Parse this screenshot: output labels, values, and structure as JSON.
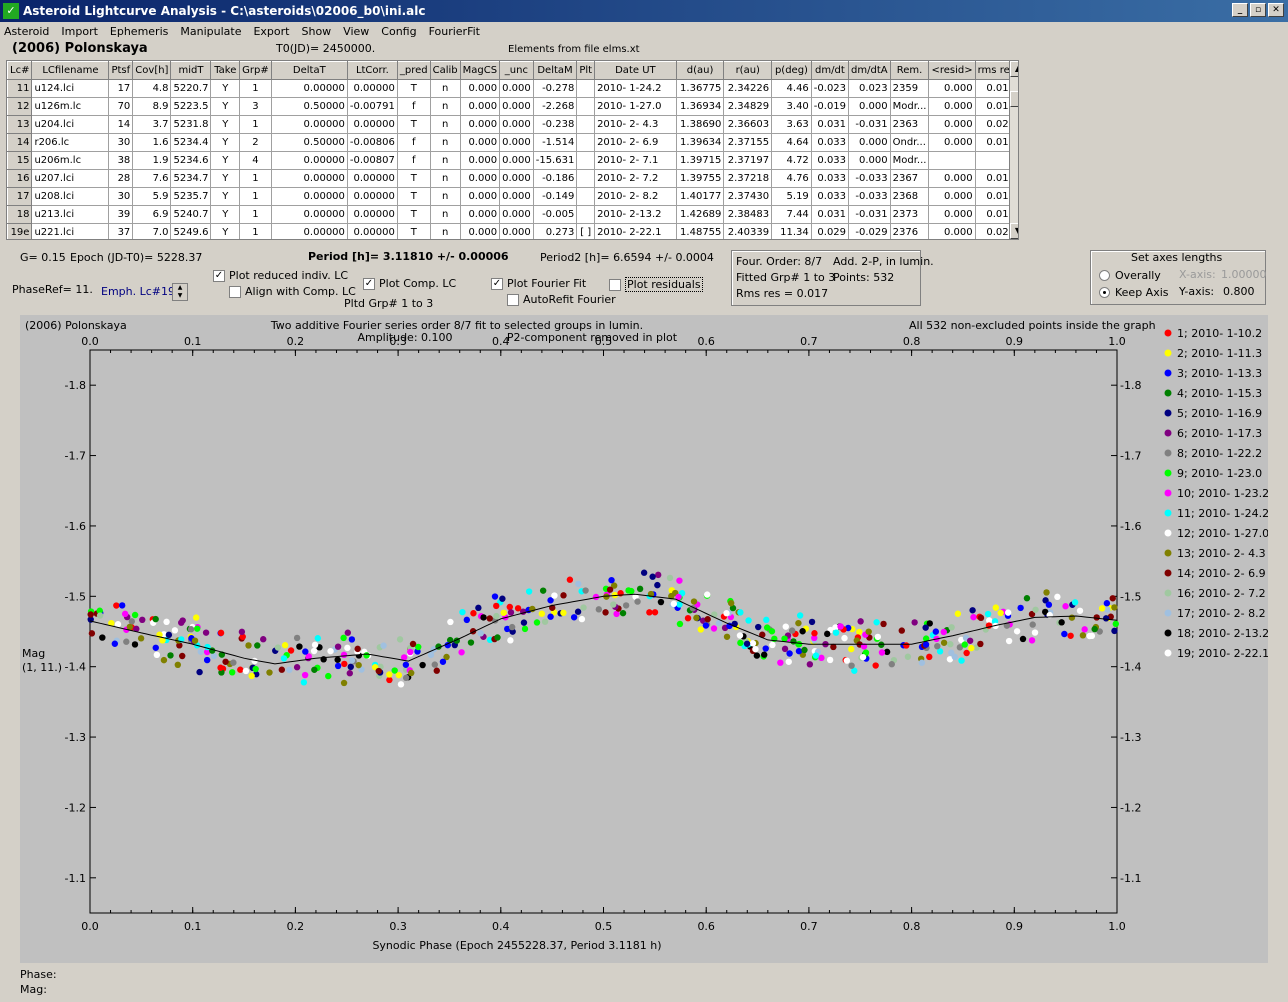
{
  "window": {
    "title": "Asteroid Lightcurve Analysis - C:\\asteroids\\02006_b0\\ini.alc",
    "icon": "app-icon"
  },
  "menu": [
    "Asteroid",
    "Import",
    "Ephemeris",
    "Manipulate",
    "Export",
    "Show",
    "View",
    "Config",
    "FourierFit"
  ],
  "header": {
    "asteroid": "(2006) Polonskaya",
    "t0": "T0(JD)= 2450000.",
    "elements": "Elements from file elms.xt"
  },
  "table": {
    "columns": [
      "Lc#",
      "LCfilename",
      "Ptsf",
      "Cov[h]",
      "midT",
      "Take",
      "Grp#",
      "DeltaT",
      "LtCorr.",
      "_pred",
      "Calib",
      "MagCS",
      "_unc",
      "DeltaM",
      "Plt",
      "Date UT",
      "d(au)",
      "r(au)",
      "p(deg)",
      "dm/dt",
      "dm/dtA",
      "Rem.",
      "<resid>",
      "rms res"
    ],
    "rows": [
      [
        "11",
        "u124.lci",
        "17",
        "4.8",
        "5220.7",
        "Y",
        "1",
        "0.00000",
        "0.00000",
        "T",
        "n",
        "0.000",
        "0.000",
        "-0.278",
        "",
        "2010- 1-24.2",
        "1.36775",
        "2.34226",
        "4.46",
        "-0.023",
        "0.023",
        "2359",
        "0.000",
        "0.017"
      ],
      [
        "12",
        "u126m.lc",
        "70",
        "8.9",
        "5223.5",
        "Y",
        "3",
        "0.50000",
        "-0.00791",
        "f",
        "n",
        "0.000",
        "0.000",
        "-2.268",
        "",
        "2010- 1-27.0",
        "1.36934",
        "2.34829",
        "3.40",
        "-0.019",
        "0.000",
        "Modr...",
        "0.000",
        "0.016"
      ],
      [
        "13",
        "u204.lci",
        "14",
        "3.7",
        "5231.8",
        "Y",
        "1",
        "0.00000",
        "0.00000",
        "T",
        "n",
        "0.000",
        "0.000",
        "-0.238",
        "",
        "2010- 2- 4.3",
        "1.38690",
        "2.36603",
        "3.63",
        "0.031",
        "-0.031",
        "2363",
        "0.000",
        "0.020"
      ],
      [
        "14",
        "r206.lc",
        "30",
        "1.6",
        "5234.4",
        "Y",
        "2",
        "0.50000",
        "-0.00806",
        "f",
        "n",
        "0.000",
        "0.000",
        "-1.514",
        "",
        "2010- 2- 6.9",
        "1.39634",
        "2.37155",
        "4.64",
        "0.033",
        "0.000",
        "Ondr...",
        "0.000",
        "0.013"
      ],
      [
        "15",
        "u206m.lc",
        "38",
        "1.9",
        "5234.6",
        "Y",
        "4",
        "0.00000",
        "-0.00807",
        "f",
        "n",
        "0.000",
        "0.000",
        "-15.631",
        "",
        "2010- 2- 7.1",
        "1.39715",
        "2.37197",
        "4.72",
        "0.033",
        "0.000",
        "Modr...",
        "",
        ""
      ],
      [
        "16",
        "u207.lci",
        "28",
        "7.6",
        "5234.7",
        "Y",
        "1",
        "0.00000",
        "0.00000",
        "T",
        "n",
        "0.000",
        "0.000",
        "-0.186",
        "",
        "2010- 2- 7.2",
        "1.39755",
        "2.37218",
        "4.76",
        "0.033",
        "-0.033",
        "2367",
        "0.000",
        "0.013"
      ],
      [
        "17",
        "u208.lci",
        "30",
        "5.9",
        "5235.7",
        "Y",
        "1",
        "0.00000",
        "0.00000",
        "T",
        "n",
        "0.000",
        "0.000",
        "-0.149",
        "",
        "2010- 2- 8.2",
        "1.40177",
        "2.37430",
        "5.19",
        "0.033",
        "-0.033",
        "2368",
        "0.000",
        "0.011"
      ],
      [
        "18",
        "u213.lci",
        "39",
        "6.9",
        "5240.7",
        "Y",
        "1",
        "0.00000",
        "0.00000",
        "T",
        "n",
        "0.000",
        "0.000",
        "-0.005",
        "",
        "2010- 2-13.2",
        "1.42689",
        "2.38483",
        "7.44",
        "0.031",
        "-0.031",
        "2373",
        "0.000",
        "0.018"
      ],
      [
        "19e",
        "u221.lci",
        "37",
        "7.0",
        "5249.6",
        "Y",
        "1",
        "0.00000",
        "0.00000",
        "T",
        "n",
        "0.000",
        "0.000",
        "0.273",
        "[ ]",
        "2010- 2-22.1",
        "1.48755",
        "2.40339",
        "11.34",
        "0.029",
        "-0.029",
        "2376",
        "0.000",
        "0.020"
      ]
    ]
  },
  "params": {
    "g": "G= 0.15",
    "epoch": "Epoch (JD-T0)= 5228.37",
    "period": "Period [h]= 3.11810 +/- 0.00006",
    "period2": "Period2 [h]= 6.6594 +/- 0.0004",
    "phaseref": "PhaseRef= 11.",
    "emph": "Emph. Lc#19:",
    "pltd_grp": "Pltd Grp#  1   to    3"
  },
  "checkboxes": {
    "plot_reduced": {
      "label": "Plot reduced indiv. LC",
      "checked": true
    },
    "align_comp": {
      "label": "Align with Comp. LC",
      "checked": false
    },
    "plot_comp": {
      "label": "Plot Comp. LC",
      "checked": true
    },
    "plot_fourier": {
      "label": "Plot Fourier Fit",
      "checked": true
    },
    "autorefit": {
      "label": "AutoRefit Fourier",
      "checked": false
    },
    "plot_residuals": {
      "label": "Plot residuals",
      "checked": false
    }
  },
  "fourier_box": {
    "order": "Four. Order:  8/7",
    "add": "Add. 2-P, in lumin.",
    "fitted": "Fitted Grp# 1 to 3",
    "points": "Points: 532",
    "rms": "Rms res     = 0.017"
  },
  "axes_box": {
    "title": "Set axes lengths",
    "overally": "Overally",
    "keep": "Keep Axis",
    "xaxis_label": "X-axis:",
    "xaxis_val": "1.00000",
    "yaxis_label": "Y-axis:",
    "yaxis_val": "0.800",
    "selected": "keep"
  },
  "chart_data": {
    "type": "scatter",
    "title": "Two additive Fourier series order 8/7 fit to selected groups in lumin.",
    "subtitle_left": "Amplitude: 0.100",
    "subtitle_right": "P2-component removed in plot",
    "label_left": "(2006) Polonskaya",
    "label_right": "All 532 non-excluded points inside the graph",
    "xlabel": "Synodic Phase (Epoch 2455228.37, Period 3.1181 h)",
    "ylabel": "Mag\n(1, 11.)",
    "xlim": [
      0,
      1
    ],
    "ylim": [
      -1.85,
      -1.05
    ],
    "y_inverted": true,
    "xticks": [
      "0.0",
      "0.1",
      "0.2",
      "0.3",
      "0.4",
      "0.5",
      "0.6",
      "0.7",
      "0.8",
      "0.9",
      "1.0"
    ],
    "yticks": [
      "-1.8",
      "-1.7",
      "-1.6",
      "-1.5",
      "-1.4",
      "-1.3",
      "-1.2",
      "-1.1"
    ],
    "fit_curve": {
      "x": [
        0,
        0.05,
        0.1,
        0.15,
        0.18,
        0.22,
        0.27,
        0.31,
        0.36,
        0.4,
        0.45,
        0.5,
        0.53,
        0.57,
        0.62,
        0.66,
        0.7,
        0.75,
        0.8,
        0.84,
        0.88,
        0.92,
        0.96,
        1.0
      ],
      "y": [
        -1.465,
        -1.448,
        -1.432,
        -1.412,
        -1.404,
        -1.412,
        -1.418,
        -1.408,
        -1.44,
        -1.468,
        -1.487,
        -1.5,
        -1.503,
        -1.496,
        -1.462,
        -1.438,
        -1.432,
        -1.432,
        -1.432,
        -1.444,
        -1.458,
        -1.47,
        -1.472,
        -1.466
      ]
    },
    "series": [
      {
        "name": "1; 2010- 1-10.2",
        "color": "#ff0000"
      },
      {
        "name": "2; 2010- 1-11.3",
        "color": "#ffff00"
      },
      {
        "name": "3; 2010- 1-13.3",
        "color": "#0000ff"
      },
      {
        "name": "4; 2010- 1-15.3",
        "color": "#008000"
      },
      {
        "name": "5; 2010- 1-16.9",
        "color": "#000080"
      },
      {
        "name": "6; 2010- 1-17.3",
        "color": "#800080"
      },
      {
        "name": "8; 2010- 1-22.2",
        "color": "#808080"
      },
      {
        "name": "9; 2010- 1-23.0",
        "color": "#00ff00"
      },
      {
        "name": "10; 2010- 1-23.2",
        "color": "#ff00ff"
      },
      {
        "name": "11; 2010- 1-24.2",
        "color": "#00ffff"
      },
      {
        "name": "12; 2010- 1-27.0",
        "color": "#ffffff"
      },
      {
        "name": "13; 2010- 2- 4.3",
        "color": "#808000"
      },
      {
        "name": "14; 2010- 2- 6.9",
        "color": "#800000"
      },
      {
        "name": "16; 2010- 2- 7.2",
        "color": "#a0c8a0"
      },
      {
        "name": "17; 2010- 2- 8.2",
        "color": "#a0c0e0"
      },
      {
        "name": "18; 2010- 2-13.2",
        "color": "#000000"
      },
      {
        "name": "19; 2010- 2-22.1",
        "color": "#ffffff"
      }
    ]
  },
  "status": {
    "phase": "Phase:",
    "mag": "Mag:"
  }
}
